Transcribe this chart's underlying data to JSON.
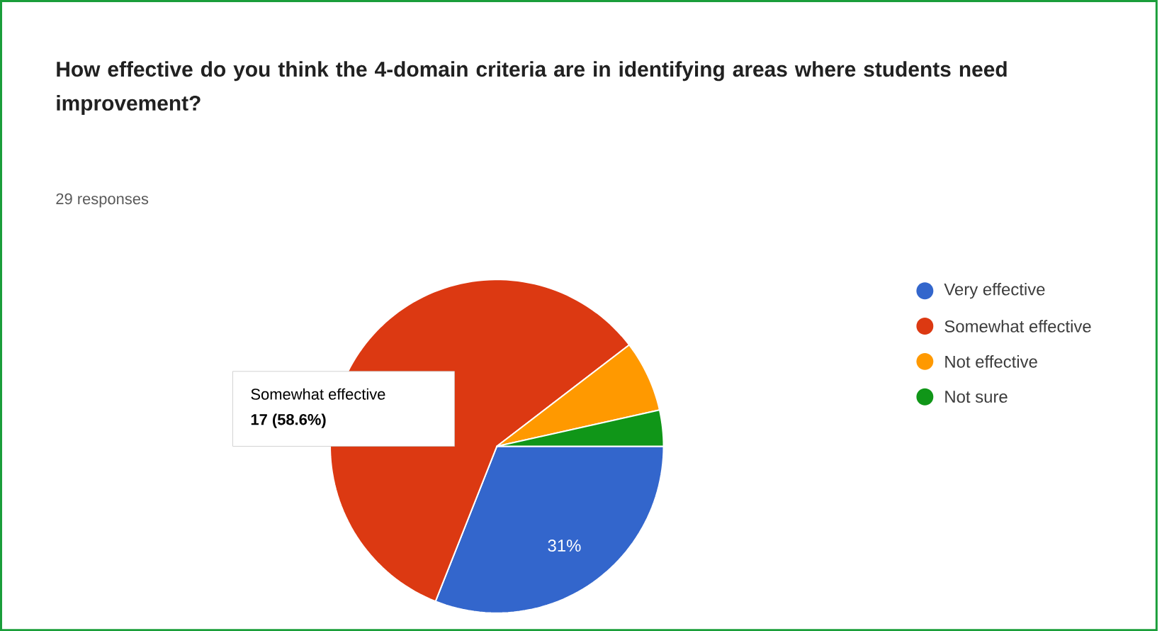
{
  "chart_data": {
    "type": "pie",
    "title": "How effective do you think the 4-domain criteria are in identifying areas where students need improvement?",
    "subtitle": "29 responses",
    "categories": [
      "Very effective",
      "Somewhat effective",
      "Not effective",
      "Not sure"
    ],
    "values": [
      31.0,
      58.6,
      6.9,
      3.5
    ],
    "colors": [
      "#3366cc",
      "#dc3912",
      "#ff9900",
      "#109618"
    ],
    "value_labels": [
      "31%",
      "17 (58.6%)",
      null,
      null
    ],
    "legend": "right"
  }
}
